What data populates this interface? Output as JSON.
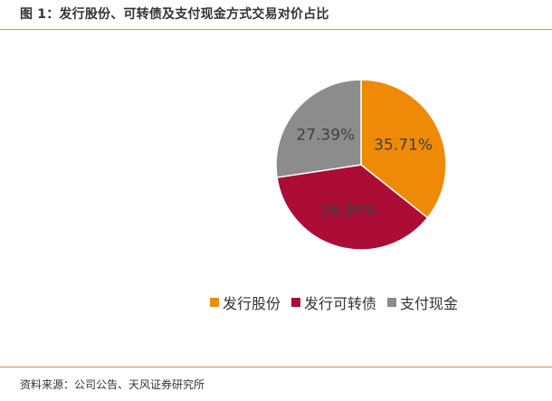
{
  "figure": {
    "title": "图 1：发行股份、可转债及支付现金方式交易对价占比",
    "source": "资料来源：公司公告、天风证券研究所"
  },
  "colors": {
    "accent_rule": "#e8901e"
  },
  "chart_data": {
    "type": "pie",
    "title": "",
    "slices": [
      {
        "name": "发行股份",
        "value": 35.71,
        "label": "35.71%",
        "color": "#ee8a08"
      },
      {
        "name": "发行可转债",
        "value": 36.9,
        "label": "36.90%",
        "color": "#ab0d36"
      },
      {
        "name": "支付现金",
        "value": 27.39,
        "label": "27.39%",
        "color": "#8c8c8c"
      }
    ],
    "start_angle_deg": 0,
    "direction": "clockwise",
    "legend_position": "bottom"
  }
}
